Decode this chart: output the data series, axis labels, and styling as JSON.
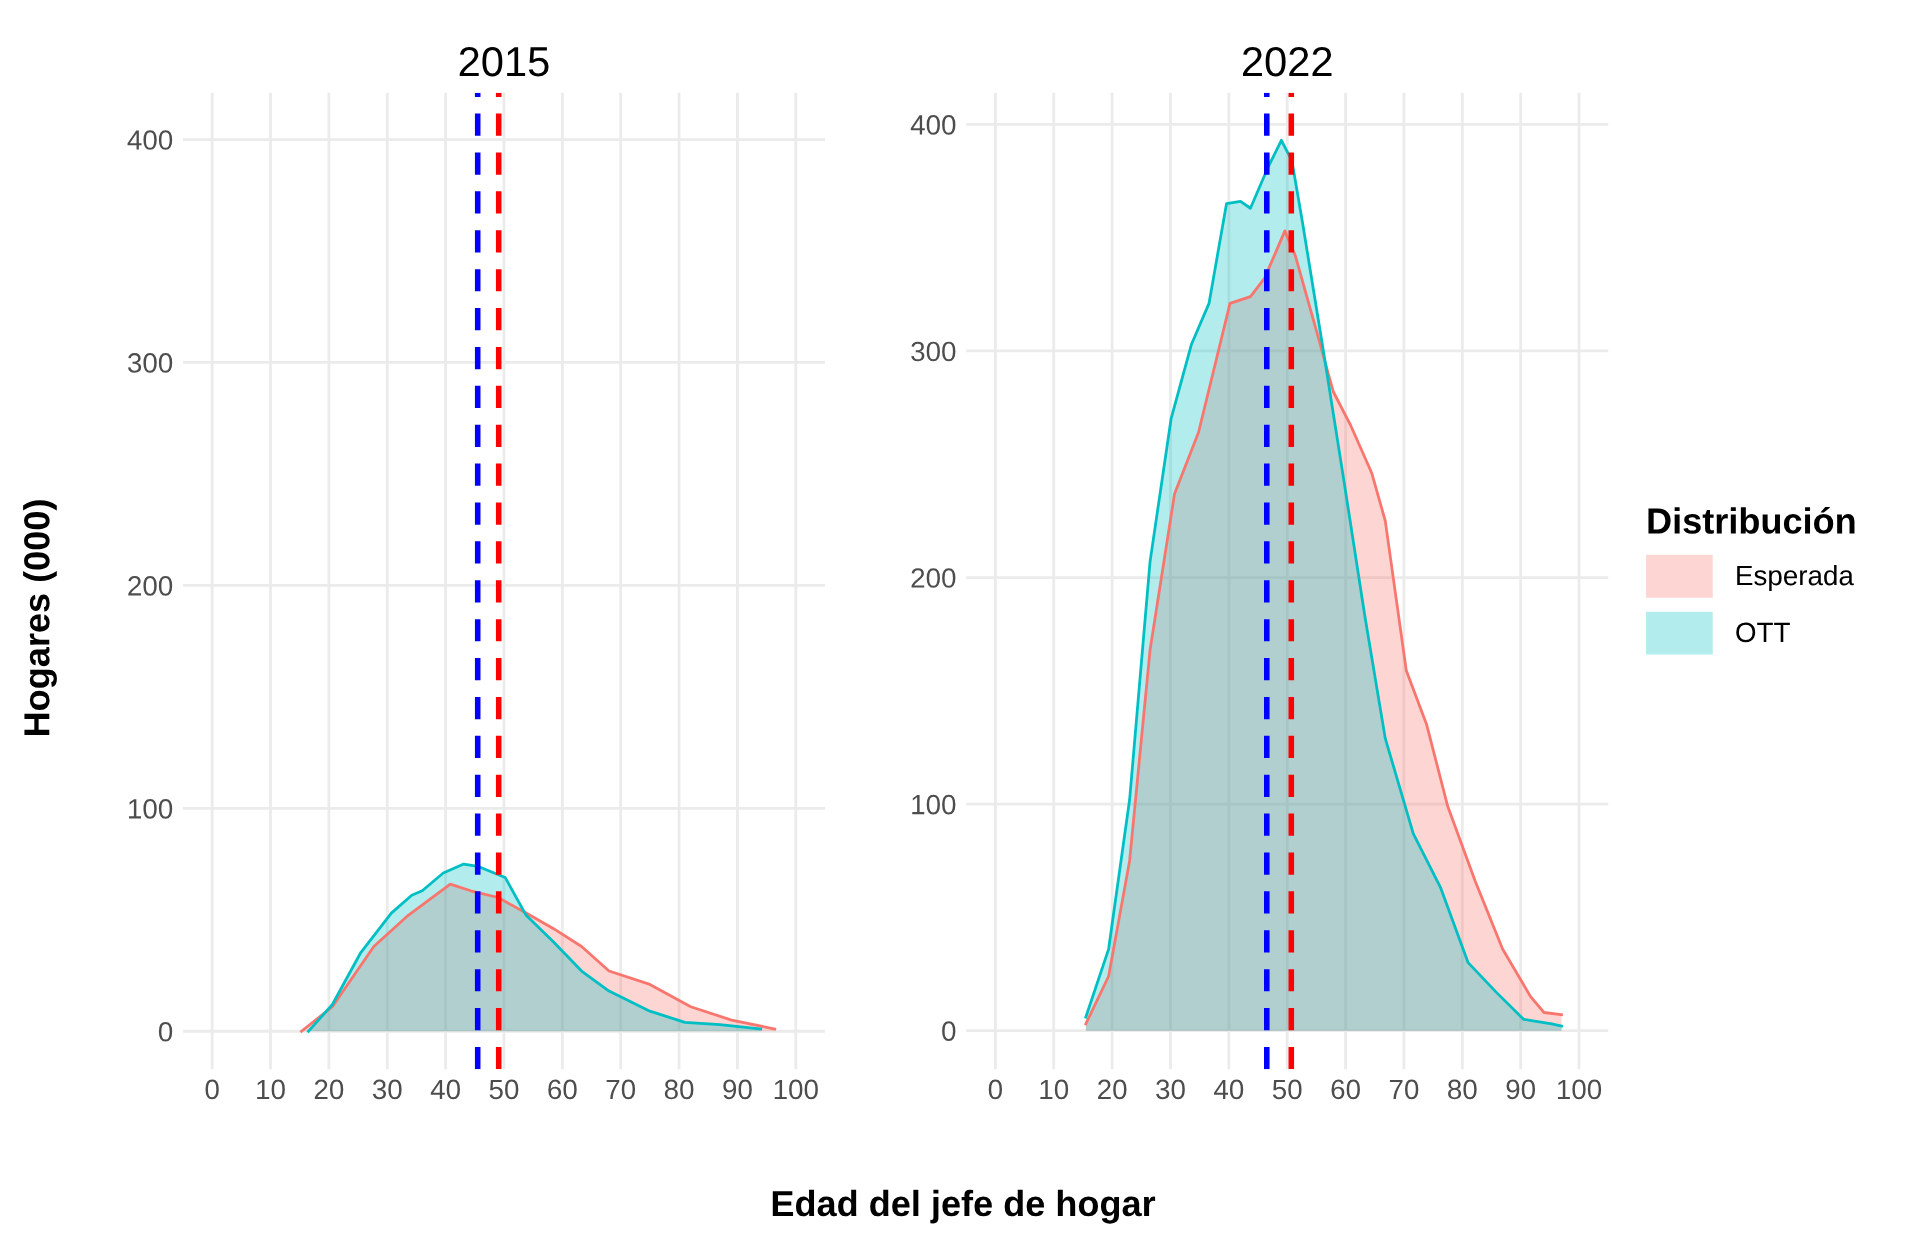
{
  "chart_data": [
    {
      "type": "area",
      "title": "2015",
      "xlabel": "Edad del jefe de hogar",
      "ylabel": "Hogares (000)",
      "xlim": [
        -5,
        105
      ],
      "xticks": [
        0,
        10,
        20,
        30,
        40,
        50,
        60,
        70,
        80,
        90,
        100
      ],
      "ylim": [
        -17,
        421
      ],
      "yticks": [
        0,
        100,
        200,
        300,
        400
      ],
      "grid": true,
      "series": [
        {
          "color": "#f8766d",
          "x": [
            15.3,
            20.6,
            27.7,
            33.6,
            40.8,
            44.3,
            49,
            53.8,
            58.5,
            63.3,
            68,
            75,
            82,
            89,
            96.4
          ],
          "values": [
            0,
            11,
            38,
            52,
            66,
            63,
            60,
            53,
            46,
            38,
            27,
            21,
            11,
            5,
            1
          ]
        },
        {
          "color": "#00bfc4",
          "x": [
            16.5,
            20.6,
            25.4,
            30.7,
            34.2,
            36,
            39.6,
            43.1,
            45.5,
            50.2,
            53.8,
            58.5,
            63.3,
            68,
            75,
            81,
            87,
            94
          ],
          "values": [
            0,
            12,
            35,
            53,
            61,
            63,
            71,
            75,
            74,
            69,
            52,
            40,
            27,
            18,
            9,
            4,
            3,
            1
          ]
        }
      ],
      "ref_lines": [
        {
          "axis": "x",
          "value": 45.5,
          "color": "#0000ff",
          "line_style": "dashed"
        },
        {
          "axis": "x",
          "value": 49.1,
          "color": "#ff0000",
          "line_style": "dashed"
        }
      ]
    },
    {
      "type": "area",
      "title": "2022",
      "legend_title": "Distribución",
      "xlim": [
        -5,
        105
      ],
      "xticks": [
        0,
        10,
        20,
        30,
        40,
        50,
        60,
        70,
        80,
        90,
        100
      ],
      "ylim": [
        -17,
        414
      ],
      "yticks": [
        0,
        100,
        200,
        300,
        400
      ],
      "grid": true,
      "legend": "right",
      "series": [
        {
          "name": "Esperada",
          "color": "#f8766d",
          "x": [
            15.5,
            19.4,
            23,
            26.5,
            30.7,
            34.8,
            40.2,
            43.7,
            46.1,
            49.6,
            51.4,
            55,
            57.9,
            60.9,
            64.5,
            66.8,
            70.4,
            73.9,
            77.5,
            82.2,
            86.9,
            91.7,
            94,
            97
          ],
          "values": [
            3,
            24,
            75,
            168,
            237,
            264,
            321,
            324,
            332,
            353,
            342,
            309,
            282,
            267,
            246,
            225,
            159,
            135,
            99,
            66,
            36,
            15,
            8,
            7
          ]
        },
        {
          "name": "OTT",
          "color": "#00bfc4",
          "x": [
            15.5,
            19.4,
            23,
            26.5,
            30.1,
            33.6,
            36.6,
            39.6,
            42,
            43.7,
            46.7,
            49,
            50.8,
            52.6,
            56.2,
            59.7,
            63.3,
            66.8,
            71.6,
            76.3,
            81,
            85.8,
            90.5,
            95.3,
            97
          ],
          "values": [
            6,
            36,
            102,
            207,
            270,
            303,
            321,
            365,
            366,
            363,
            381,
            393,
            384,
            357,
            300,
            243,
            183,
            129,
            87,
            63,
            30,
            17,
            5,
            3,
            2
          ]
        }
      ],
      "ref_lines": [
        {
          "axis": "x",
          "value": 46.5,
          "color": "#0000ff",
          "line_style": "dashed"
        },
        {
          "axis": "x",
          "value": 50.7,
          "color": "#ff0000",
          "line_style": "dashed"
        }
      ]
    }
  ]
}
